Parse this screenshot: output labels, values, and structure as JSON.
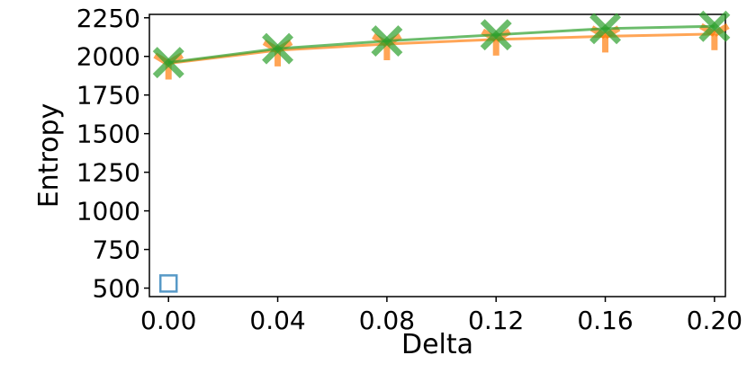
{
  "chart_data": {
    "type": "line",
    "xlabel": "Delta",
    "ylabel": "Entropy",
    "x": [
      0.0,
      0.04,
      0.08,
      0.12,
      0.16,
      0.2
    ],
    "x_tick_labels": [
      "0.00",
      "0.04",
      "0.08",
      "0.12",
      "0.16",
      "0.20"
    ],
    "y_ticks": [
      500,
      750,
      1000,
      1250,
      1500,
      1750,
      2000,
      2250
    ],
    "y_tick_labels": [
      "500",
      "750",
      "1000",
      "1250",
      "1500",
      "1750",
      "2000",
      "2250"
    ],
    "xlim": [
      -0.007,
      0.204
    ],
    "ylim": [
      445,
      2272
    ],
    "grid": false,
    "series": [
      {
        "marker": "square",
        "color": "#1f77b4",
        "line": false,
        "points": [
          [
            0.0,
            530
          ]
        ]
      },
      {
        "marker": "tri-down",
        "color": "#ff7f0e",
        "line": true,
        "points": [
          [
            0.0,
            1955
          ],
          [
            0.04,
            2040
          ],
          [
            0.08,
            2080
          ],
          [
            0.12,
            2110
          ],
          [
            0.16,
            2130
          ],
          [
            0.2,
            2145
          ]
        ]
      },
      {
        "marker": "x",
        "color": "#2ca02c",
        "line": true,
        "points": [
          [
            0.0,
            1960
          ],
          [
            0.04,
            2050
          ],
          [
            0.08,
            2100
          ],
          [
            0.12,
            2140
          ],
          [
            0.16,
            2180
          ],
          [
            0.2,
            2195
          ]
        ]
      }
    ]
  }
}
